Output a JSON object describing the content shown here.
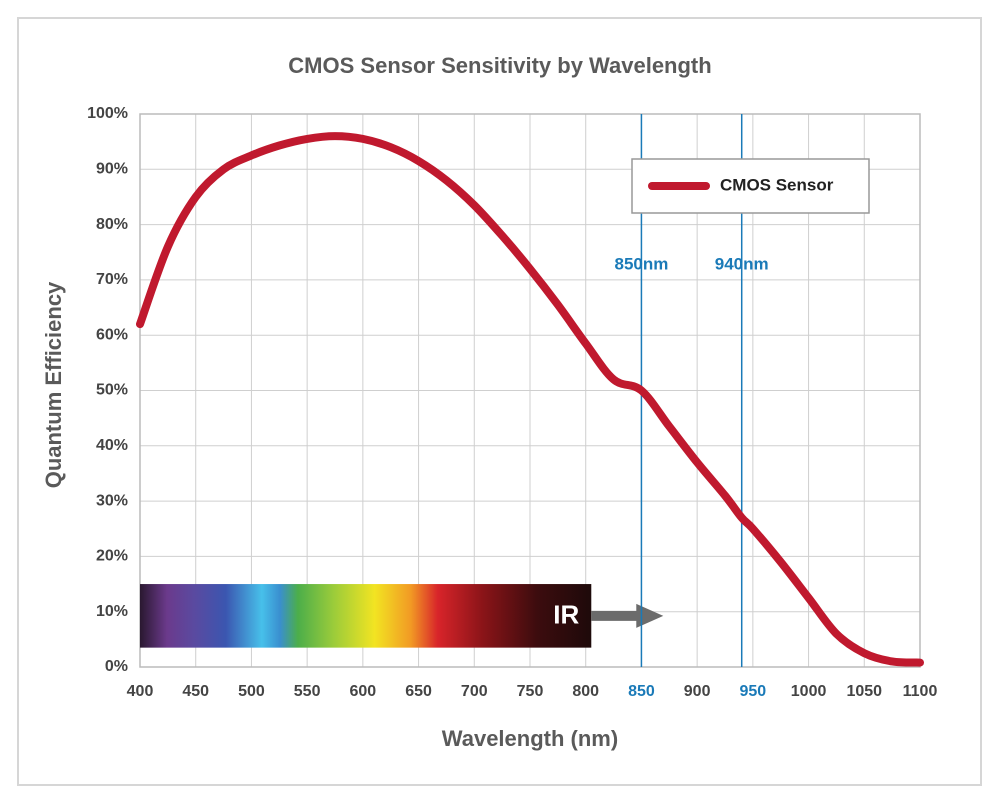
{
  "chart_data": {
    "type": "line",
    "title": "CMOS Sensor Sensitivity by Wavelength",
    "x_label": "Wavelength (nm)",
    "y_label": "Quantum Efficiency",
    "x": [
      400,
      425,
      450,
      475,
      500,
      525,
      550,
      575,
      600,
      625,
      650,
      675,
      700,
      725,
      750,
      775,
      800,
      825,
      850,
      875,
      900,
      925,
      940,
      950,
      975,
      1000,
      1025,
      1050,
      1075,
      1100
    ],
    "series": [
      {
        "name": "CMOS Sensor",
        "color": "#c0192e",
        "values": [
          62,
          76,
          85,
          90,
          92.5,
          94.3,
          95.5,
          96,
          95.5,
          94,
          91.5,
          88,
          83.5,
          78,
          72,
          65.5,
          58.5,
          52,
          50,
          43.5,
          37,
          31,
          27,
          25,
          19,
          12.5,
          6,
          2.5,
          1,
          0.8
        ]
      }
    ],
    "xlim": [
      400,
      1100
    ],
    "xticks": [
      400,
      450,
      500,
      550,
      600,
      650,
      700,
      750,
      800,
      850,
      900,
      950,
      1000,
      1050,
      1100
    ],
    "highlighted_xticks": [
      850,
      950
    ],
    "highlight_color": "#1a7ab8",
    "ylim": [
      0,
      100
    ],
    "yticks": [
      {
        "value": 0,
        "label": "0%"
      },
      {
        "value": 10,
        "label": "10%"
      },
      {
        "value": 20,
        "label": "20%"
      },
      {
        "value": 30,
        "label": "30%"
      },
      {
        "value": 40,
        "label": "40%"
      },
      {
        "value": 50,
        "label": "50%"
      },
      {
        "value": 60,
        "label": "60%"
      },
      {
        "value": 70,
        "label": "70%"
      },
      {
        "value": 80,
        "label": "80%"
      },
      {
        "value": 90,
        "label": "90%"
      },
      {
        "value": 100,
        "label": "100%"
      }
    ],
    "grid": true,
    "legend": "upper right",
    "reference_lines": [
      {
        "x": 850,
        "label": "850nm"
      },
      {
        "x": 940,
        "label": "940nm"
      }
    ],
    "spectrum_band": {
      "label": "IR",
      "xlim": [
        400,
        805
      ],
      "ylim": [
        3.5,
        15
      ]
    }
  }
}
